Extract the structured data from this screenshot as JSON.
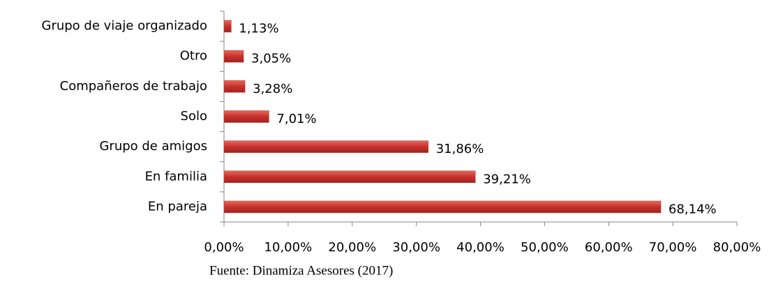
{
  "chart_data": {
    "type": "bar",
    "orientation": "horizontal",
    "categories": [
      "Grupo de viaje organizado",
      "Otro",
      "Compañeros de trabajo",
      "Solo",
      "Grupo de amigos",
      "En familia",
      "En pareja"
    ],
    "values": [
      1.13,
      3.05,
      3.28,
      7.01,
      31.86,
      39.21,
      68.14
    ],
    "value_labels": [
      "1,13%",
      "3,05%",
      "3,28%",
      "7,01%",
      "31,86%",
      "39,21%",
      "68,14%"
    ],
    "color": "#c0392b",
    "xlim": [
      0,
      80
    ],
    "xticks": [
      {
        "value": 0,
        "label": "0,00%"
      },
      {
        "value": 10,
        "label": "10,00%"
      },
      {
        "value": 20,
        "label": "20,00%"
      },
      {
        "value": 30,
        "label": "30,00%"
      },
      {
        "value": 40,
        "label": "40,00%"
      },
      {
        "value": 50,
        "label": "50,00%"
      },
      {
        "value": 60,
        "label": "60,00%"
      },
      {
        "value": 70,
        "label": "70,00%"
      },
      {
        "value": 80,
        "label": "80,00%"
      }
    ],
    "grid": false,
    "source": "Fuente: Dinamiza Asesores (2017)"
  }
}
